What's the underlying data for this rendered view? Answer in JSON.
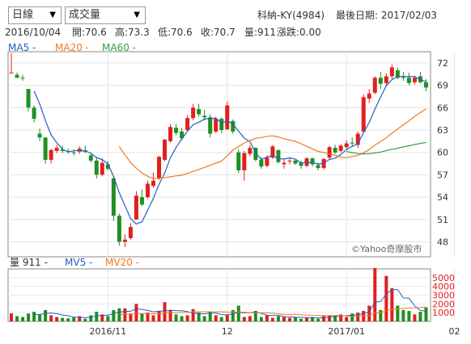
{
  "controls": {
    "period": {
      "value": "日線"
    },
    "indicator": {
      "value": "成交量"
    }
  },
  "header": {
    "stock": "科納-KY(4984)",
    "last_trade": "最後日期: 2017/02/03"
  },
  "ohlc": {
    "date": "2016/10/04",
    "open": "開:70.6",
    "high": "高:73.3",
    "low": "低:70.6",
    "close": "收:70.7",
    "volume": "量:911",
    "change": "漲跌:0.00"
  },
  "legend_price": {
    "ma5": "MA5",
    "ma20": "MA20",
    "ma60": "MA60",
    "sep": "-"
  },
  "legend_vol": {
    "vol": "量 911",
    "mv5": "MV5",
    "mv20": "MV20",
    "sep": "-"
  },
  "watermark": "©Yahoo奇摩股市",
  "colors": {
    "up": "#e0201f",
    "down": "#1f8f22",
    "ma5": "#2060c0",
    "ma20": "#f07820",
    "ma60": "#30a040"
  },
  "chart_data": [
    {
      "type": "candlestick",
      "title": "",
      "y_ticks": [
        72,
        69,
        66,
        63,
        60,
        57,
        54,
        51,
        48
      ],
      "ylim": [
        46,
        73.5
      ],
      "x_tick_labels": [
        "2016/11",
        "12",
        "2017/01",
        "02"
      ],
      "x_tick_index": [
        17,
        38,
        59,
        78
      ],
      "candles": [
        [
          70.6,
          73.3,
          70.6,
          70.7
        ],
        [
          70.4,
          70.7,
          70.0,
          70.0
        ],
        [
          70.0,
          70.4,
          69.6,
          69.9
        ],
        [
          68.5,
          68.5,
          65.5,
          66.0
        ],
        [
          66.0,
          66.3,
          64.0,
          64.5
        ],
        [
          62.5,
          63.2,
          61.5,
          62.0
        ],
        [
          62.0,
          62.0,
          58.5,
          59.0
        ],
        [
          59.0,
          60.5,
          58.5,
          60.3
        ],
        [
          60.2,
          61.0,
          59.9,
          60.6
        ],
        [
          60.4,
          60.9,
          59.9,
          60.2
        ],
        [
          60.2,
          60.5,
          59.8,
          60.1
        ],
        [
          60.0,
          60.4,
          59.6,
          59.9
        ],
        [
          60.1,
          60.8,
          59.8,
          60.5
        ],
        [
          60.3,
          60.9,
          59.9,
          60.1
        ],
        [
          59.6,
          60.0,
          58.6,
          58.9
        ],
        [
          58.9,
          59.4,
          56.5,
          57.0
        ],
        [
          57.0,
          59.2,
          56.8,
          58.6
        ],
        [
          58.4,
          58.8,
          57.6,
          57.8
        ],
        [
          56.5,
          56.8,
          50.8,
          51.5
        ],
        [
          51.5,
          51.8,
          47.5,
          48.0
        ],
        [
          48.0,
          49.0,
          47.3,
          48.3
        ],
        [
          48.5,
          50.5,
          48.3,
          50.0
        ],
        [
          51.0,
          54.8,
          51.0,
          54.2
        ],
        [
          54.0,
          55.0,
          52.8,
          53.0
        ],
        [
          54.0,
          56.2,
          53.8,
          55.8
        ],
        [
          55.5,
          57.3,
          55.3,
          56.2
        ],
        [
          56.5,
          59.5,
          56.3,
          59.4
        ],
        [
          59.0,
          61.8,
          58.8,
          61.7
        ],
        [
          61.5,
          63.8,
          61.3,
          63.4
        ],
        [
          63.3,
          63.8,
          62.3,
          62.6
        ],
        [
          62.8,
          63.3,
          61.6,
          61.9
        ],
        [
          63.0,
          65.0,
          62.8,
          64.6
        ],
        [
          64.6,
          66.5,
          64.3,
          66.0
        ],
        [
          65.8,
          66.5,
          64.8,
          65.1
        ],
        [
          64.9,
          65.7,
          64.3,
          64.7
        ],
        [
          64.7,
          65.1,
          62.0,
          62.5
        ],
        [
          62.8,
          64.8,
          62.6,
          64.5
        ],
        [
          64.5,
          64.7,
          62.6,
          63.0
        ],
        [
          63.1,
          66.8,
          63.0,
          66.3
        ],
        [
          64.2,
          64.4,
          62.5,
          62.8
        ],
        [
          60.0,
          60.4,
          57.2,
          57.6
        ],
        [
          57.6,
          60.2,
          56.2,
          59.9
        ],
        [
          59.8,
          61.0,
          59.5,
          60.6
        ],
        [
          60.6,
          60.7,
          58.8,
          59.0
        ],
        [
          59.0,
          59.4,
          57.8,
          58.1
        ],
        [
          58.2,
          59.6,
          58.0,
          59.3
        ],
        [
          59.3,
          61.0,
          59.1,
          60.8
        ],
        [
          60.3,
          60.4,
          58.5,
          58.7
        ],
        [
          58.4,
          59.0,
          57.8,
          58.6
        ],
        [
          58.8,
          59.3,
          58.4,
          58.9
        ],
        [
          58.9,
          59.0,
          58.3,
          58.5
        ],
        [
          58.6,
          58.9,
          57.8,
          58.2
        ],
        [
          58.2,
          59.4,
          58.0,
          59.2
        ],
        [
          59.2,
          59.3,
          58.1,
          58.4
        ],
        [
          58.3,
          58.6,
          57.6,
          57.9
        ],
        [
          57.9,
          59.3,
          57.7,
          59.1
        ],
        [
          59.3,
          60.9,
          59.1,
          60.7
        ],
        [
          60.6,
          61.0,
          59.8,
          60.0
        ],
        [
          60.2,
          61.1,
          60.0,
          60.9
        ],
        [
          60.7,
          61.6,
          60.4,
          61.2
        ],
        [
          61.3,
          62.0,
          60.8,
          61.2
        ],
        [
          61.0,
          62.8,
          60.6,
          62.5
        ],
        [
          62.8,
          67.8,
          62.6,
          67.4
        ],
        [
          67.2,
          68.5,
          66.6,
          67.9
        ],
        [
          68.0,
          70.2,
          67.8,
          70.0
        ],
        [
          70.0,
          70.8,
          68.5,
          69.2
        ],
        [
          69.3,
          70.6,
          69.0,
          70.2
        ],
        [
          70.2,
          71.8,
          69.8,
          71.4
        ],
        [
          71.0,
          71.4,
          69.8,
          70.0
        ],
        [
          70.2,
          70.8,
          69.6,
          70.0
        ],
        [
          70.0,
          70.7,
          69.0,
          69.3
        ],
        [
          69.4,
          70.3,
          69.1,
          70.0
        ],
        [
          70.2,
          70.8,
          69.2,
          69.4
        ],
        [
          69.4,
          69.8,
          68.2,
          68.7
        ]
      ],
      "ma_start": {
        "ma5": 4,
        "ma20": 19,
        "ma60": 59
      }
    },
    {
      "type": "bar",
      "title": "",
      "y_ticks": [
        5000,
        4000,
        3000,
        2000,
        1000
      ],
      "ylim": [
        0,
        6000
      ],
      "volumes": [
        911,
        600,
        500,
        900,
        1100,
        800,
        1300,
        700,
        500,
        400,
        350,
        450,
        600,
        300,
        700,
        1100,
        800,
        600,
        1300,
        1500,
        1500,
        900,
        2000,
        900,
        1000,
        700,
        1200,
        2200,
        1300,
        800,
        600,
        700,
        1400,
        1000,
        600,
        1100,
        700,
        500,
        800,
        1300,
        1800,
        500,
        600,
        1200,
        500,
        700,
        400,
        600,
        500,
        400,
        500,
        300,
        400,
        500,
        300,
        600,
        700,
        700,
        800,
        500,
        900,
        1000,
        1200,
        1800,
        6100,
        1300,
        5200,
        3800,
        1800,
        1300,
        1200,
        800,
        1100,
        1600
      ]
    }
  ]
}
